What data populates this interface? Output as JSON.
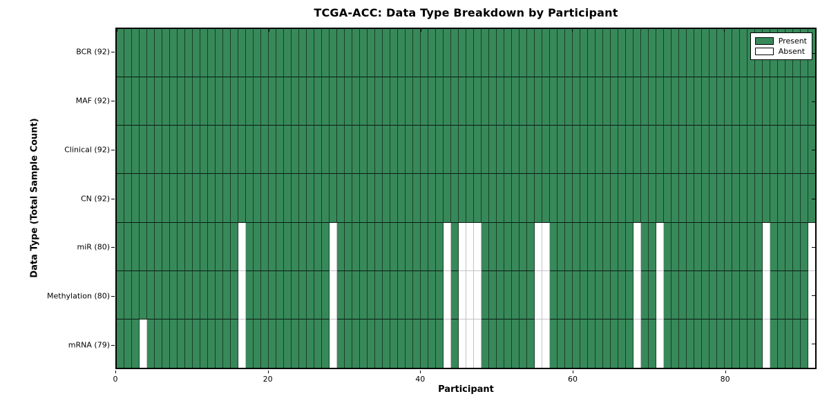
{
  "chart_data": {
    "type": "heatmap",
    "title": "TCGA-ACC: Data Type Breakdown by Participant",
    "xlabel": "Participant",
    "ylabel": "Data Type (Total Sample Count)",
    "n_participants": 92,
    "x_range": [
      0,
      92
    ],
    "x_ticks": [
      0,
      20,
      40,
      60,
      80
    ],
    "grid": false,
    "legend_position": "upper right",
    "legend": [
      {
        "label": "Present",
        "state": "present"
      },
      {
        "label": "Absent",
        "state": "absent"
      }
    ],
    "colors": {
      "present": "#37895a",
      "absent": "#ffffff",
      "absent_edge": "#c2c2c2",
      "spine": "#000000",
      "background": "#ffffff"
    },
    "rows": [
      {
        "label": "BCR (92)",
        "present_count": 92,
        "absent_participants": []
      },
      {
        "label": "MAF (92)",
        "present_count": 92,
        "absent_participants": []
      },
      {
        "label": "Clinical (92)",
        "present_count": 92,
        "absent_participants": []
      },
      {
        "label": "CN (92)",
        "present_count": 92,
        "absent_participants": []
      },
      {
        "label": "miR (80)",
        "present_count": 80,
        "absent_participants": [
          16,
          28,
          43,
          45,
          46,
          47,
          55,
          56,
          68,
          71,
          85,
          91
        ]
      },
      {
        "label": "Methylation (80)",
        "present_count": 80,
        "absent_participants": [
          16,
          28,
          43,
          45,
          46,
          47,
          55,
          56,
          68,
          71,
          85,
          91
        ]
      },
      {
        "label": "mRNA (79)",
        "present_count": 79,
        "absent_participants": [
          3,
          16,
          28,
          43,
          45,
          46,
          47,
          55,
          56,
          68,
          71,
          85,
          91
        ]
      }
    ]
  }
}
